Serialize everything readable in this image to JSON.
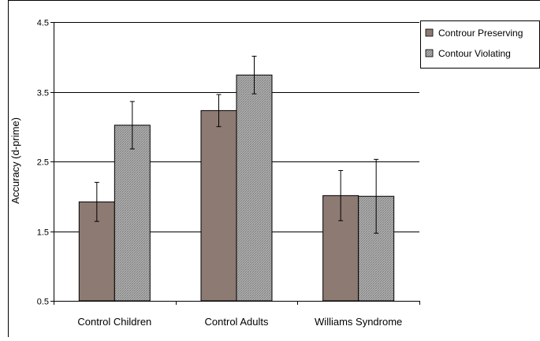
{
  "chart_data": {
    "type": "bar",
    "title": "",
    "xlabel": "",
    "ylabel": "Accuracy (d-prime)",
    "ylim": [
      0.5,
      4.5
    ],
    "yticks": [
      "0.5",
      "1.5",
      "2.5",
      "3.5",
      "4.5"
    ],
    "grid": true,
    "legend_position": "top-right",
    "categories": [
      "Control Children",
      "Control Adults",
      "Williams Syndrome"
    ],
    "series": [
      {
        "name": "Contour Preserving",
        "legend_label": "Controur Preserving",
        "pattern": "solid-mauve",
        "color": "#8c7a73",
        "values": [
          1.92,
          3.23,
          2.01
        ],
        "error": [
          0.28,
          0.23,
          0.36
        ]
      },
      {
        "name": "Contour Violating",
        "legend_label": "Contour Violating",
        "pattern": "crosshatch-gray",
        "color": "#b4b4b4",
        "values": [
          3.02,
          3.74,
          2.0
        ],
        "error": [
          0.34,
          0.27,
          0.53
        ]
      }
    ]
  }
}
